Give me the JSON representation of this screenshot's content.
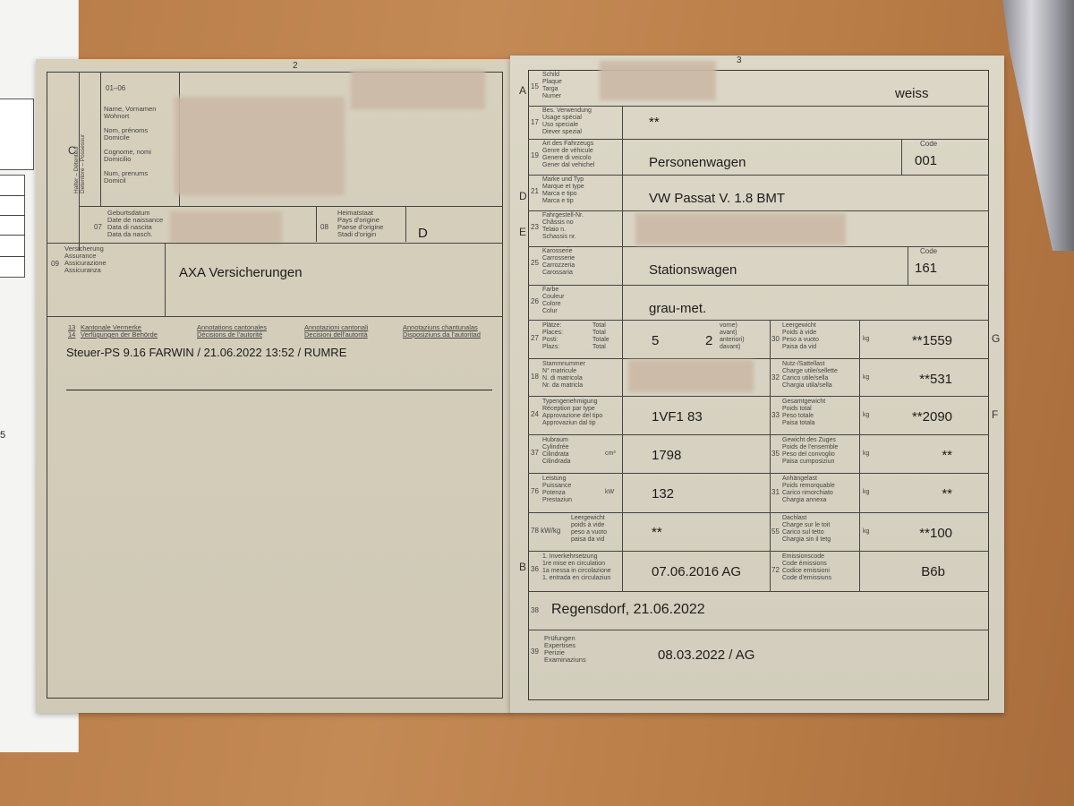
{
  "left_page": {
    "page_number": "2",
    "section_letter": "C",
    "holder_vertical": "Halter – Détenteur\nDetentore – Possessur",
    "field_01_06": {
      "number": "01–06",
      "labels": "Name, Vornamen\nWohnort\n\nNom, prénoms\nDomicile\n\nCognome, nomi\nDomicilio\n\nNum, prenums\nDomicil"
    },
    "field_07": {
      "number": "07",
      "labels": "Geburtsdatum\nDate de naissance\nData di nascita\nData da nasch."
    },
    "field_08": {
      "number": "08",
      "labels": "Heimatstaat\nPays d'origine\nPaese d'origine\nStadi d'origin",
      "value": "D"
    },
    "field_09": {
      "number": "09",
      "labels": "Versicherung\nAssurance\nAssicurazione\nAssicuranza",
      "value": "AXA Versicherungen"
    },
    "field_13_14": {
      "numbers": "13\n14",
      "de": "Kantonale Vermerke\nVerfügungen der Behörde",
      "fr": "Annotations cantonales\nDécisions de l'autorité",
      "it": "Annotazioni cantonali\nDecisioni dell'autorità",
      "rm": "Annotaziuns chantunalas\nDisposiziuns da l'autoritad",
      "value": "Steuer-PS  9.16  FARWIN / 21.06.2022 13:52 / RUMRE"
    }
  },
  "right_page": {
    "page_number": "3",
    "side_letters": {
      "A": "A",
      "D": "D",
      "E": "E",
      "G": "G",
      "F": "F",
      "B": "B"
    },
    "f15": {
      "number": "15",
      "labels": "Schild\nPlaque\nTarga\nNumer",
      "value": "weiss"
    },
    "f17": {
      "number": "17",
      "labels": "Bes. Verwendung\nUsage spécial\nUso speciale\nDiever spezial",
      "value": "**"
    },
    "f19": {
      "number": "19",
      "labels": "Art des Fahrzeugs\nGenre de véhicule\nGenere di veicolo\nGener dal vehichel",
      "value": "Personenwagen",
      "code_label": "Code",
      "code": "001"
    },
    "f21": {
      "number": "21",
      "labels": "Marke und Typ\nMarque et type\nMarca e tipo\nMarca e tip",
      "value": "VW Passat V. 1.8 BMT"
    },
    "f23": {
      "number": "23",
      "labels": "Fahrgestell-Nr.\nChâssis no\nTelaio n.\nSchassis nr."
    },
    "f25": {
      "number": "25",
      "labels": "Karosserie\nCarrosserie\nCarrozzeria\nCarossaria",
      "value": "Stationswagen",
      "code_label": "Code",
      "code": "161"
    },
    "f26": {
      "number": "26",
      "labels": "Farbe\nCouleur\nColore\nColur",
      "value": "grau-met."
    },
    "f27": {
      "number": "27",
      "labels": "Plätze:\nPlaces:\nPosti:\nPlazs:",
      "totals": "Total\nTotal\nTotale\nTotal",
      "value": "5",
      "front": "2",
      "front_labels": "vorne)\navant)\nanteriori)\ndavant)"
    },
    "f30": {
      "number": "30",
      "labels": "Leergewicht\nPoids à vide\nPeso a vuoto\nPaisa da vid",
      "unit": "kg",
      "value": "**1559"
    },
    "f18": {
      "number": "18",
      "labels": "Stammnummer\nN° matricule\nN. di matricola\nNr. da matricla"
    },
    "f32": {
      "number": "32",
      "labels": "Nutz-/Sattellast\nCharge utile/sellette\nCarico utile/sella\nChargia utila/sella",
      "unit": "kg",
      "value": "**531"
    },
    "f24": {
      "number": "24",
      "labels": "Typengenehmigung\nRéception par type\nApprovazione del tipo\nApprovaziun dal tip",
      "value": "1VF1 83"
    },
    "f33": {
      "number": "33",
      "labels": "Gesamtgewicht\nPoids total\nPeso totale\nPaisa totala",
      "unit": "kg",
      "value": "**2090"
    },
    "f37": {
      "number": "37",
      "labels": "Hubraum\nCylindrée\nCilindrata\nCilindrada",
      "unit": "cm³",
      "value": "1798"
    },
    "f35": {
      "number": "35",
      "labels": "Gewicht des Zuges\nPoids de l'ensemble\nPeso del convoglio\nPaisa cumposiziun",
      "unit": "kg",
      "value": "**"
    },
    "f76": {
      "number": "76",
      "labels": "Leistung\nPuissance\nPotenza\nPrestaziun",
      "unit": "kW",
      "value": "132"
    },
    "f31": {
      "number": "31",
      "labels": "Anhängelast\nPoids remorquable\nCarico rimorchiato\nChargia annexa",
      "unit": "kg",
      "value": "**"
    },
    "f78": {
      "number": "78 kW/kg",
      "labels": "Leergewicht\npoids à vide\npeso a vuoto\npaisa da vid",
      "value": "**"
    },
    "f55": {
      "number": "55",
      "labels": "Dachlast\nCharge sur le toit\nCarico sul tetto\nChargia sin il tetg",
      "unit": "kg",
      "value": "**100"
    },
    "f36": {
      "number": "36",
      "labels": "1. Inverkehrsetzung\n1re mise en circulation\n1a messa in circolazione\n1. entrada en circulaziun",
      "value": "07.06.2016 AG"
    },
    "f72": {
      "number": "72",
      "labels": "Emissionscode\nCode émissions\nCodice emissioni\nCode d'emissiuns",
      "value": "B6b"
    },
    "f38": {
      "number": "38",
      "value": "Regensdorf, 21.06.2022"
    },
    "f39": {
      "number": "39",
      "labels": "Prüfungen\nExpertises\nPerizie\nExaminaziuns",
      "value": "08.03.2022 / AG"
    }
  },
  "background_sheet": {
    "margin_number": "5"
  },
  "colors": {
    "paper": "#d9d3c2",
    "table": "#b97d47",
    "ink": "#1c1c1c"
  }
}
